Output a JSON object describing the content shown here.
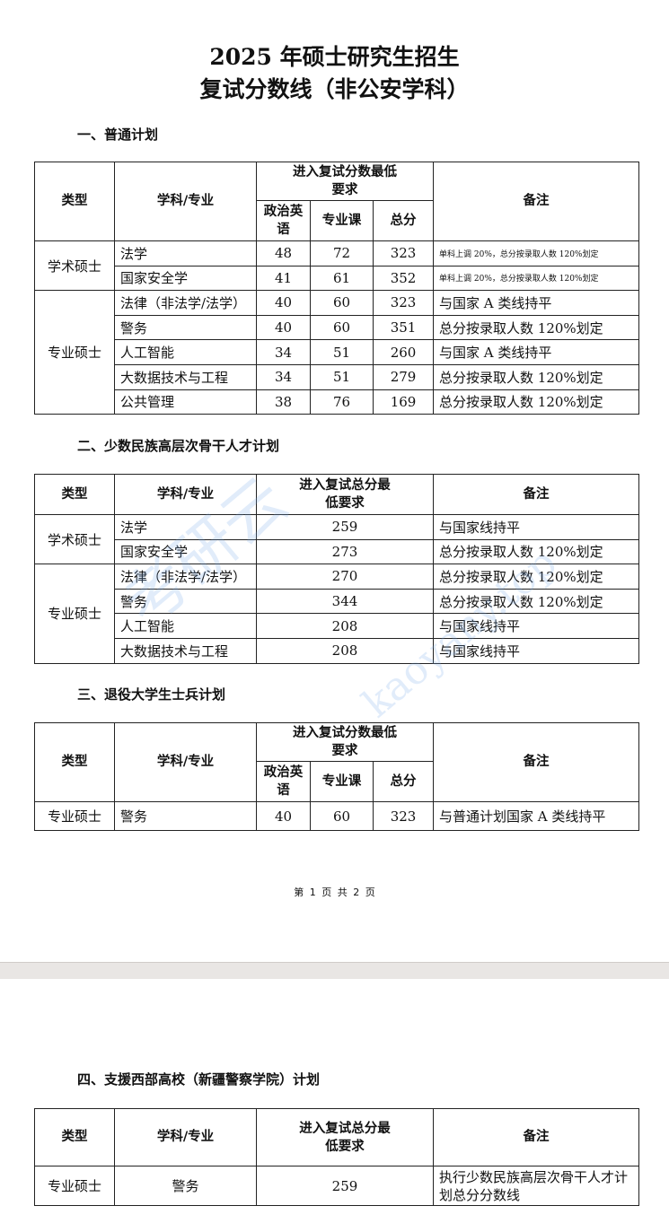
{
  "title_line1": "2025 年硕士研究生招生",
  "title_line2": "复试分数线（非公安学科）",
  "watermark": {
    "chinese": "考研云",
    "url": "kaoyany.top"
  },
  "headers": {
    "type": "类型",
    "subject": "学科/专业",
    "req3": "进入复试分数最低要求",
    "req_total": "进入复试总分最低要求",
    "politics": "政治英语",
    "major": "专业课",
    "total": "总分",
    "note": "备注"
  },
  "section1": {
    "title": "一、普通计划",
    "groups": [
      {
        "type": "学术硕士",
        "rows": [
          [
            "法学",
            "48",
            "72",
            "323",
            "单科上调 20%，总分按录取人数 120%划定"
          ],
          [
            "国家安全学",
            "41",
            "61",
            "352",
            "单科上调 20%，总分按录取人数 120%划定"
          ]
        ]
      },
      {
        "type": "专业硕士",
        "rows": [
          [
            "法律（非法学/法学）",
            "40",
            "60",
            "323",
            "与国家 A 类线持平"
          ],
          [
            "警务",
            "40",
            "60",
            "351",
            "总分按录取人数 120%划定"
          ],
          [
            "人工智能",
            "34",
            "51",
            "260",
            "与国家 A 类线持平"
          ],
          [
            "大数据技术与工程",
            "34",
            "51",
            "279",
            "总分按录取人数 120%划定"
          ],
          [
            "公共管理",
            "38",
            "76",
            "169",
            "总分按录取人数 120%划定"
          ]
        ]
      }
    ]
  },
  "section2": {
    "title": "二、少数民族高层次骨干人才计划",
    "groups": [
      {
        "type": "学术硕士",
        "rows": [
          [
            "法学",
            "259",
            "与国家线持平"
          ],
          [
            "国家安全学",
            "273",
            "总分按录取人数 120%划定"
          ]
        ]
      },
      {
        "type": "专业硕士",
        "rows": [
          [
            "法律（非法学/法学）",
            "270",
            "总分按录取人数 120%划定"
          ],
          [
            "警务",
            "344",
            "总分按录取人数 120%划定"
          ],
          [
            "人工智能",
            "208",
            "与国家线持平"
          ],
          [
            "大数据技术与工程",
            "208",
            "与国家线持平"
          ]
        ]
      }
    ]
  },
  "section3": {
    "title": "三、退役大学生士兵计划",
    "row": [
      "专业硕士",
      "警务",
      "40",
      "60",
      "323",
      "与普通计划国家 A 类线持平"
    ]
  },
  "footer": "第 1 页 共 2 页",
  "section4": {
    "title": "四、支援西部高校（新疆警察学院）计划",
    "row": [
      "专业硕士",
      "警务",
      "259",
      "执行少数民族高层次骨干人才计划总分分数线"
    ]
  }
}
